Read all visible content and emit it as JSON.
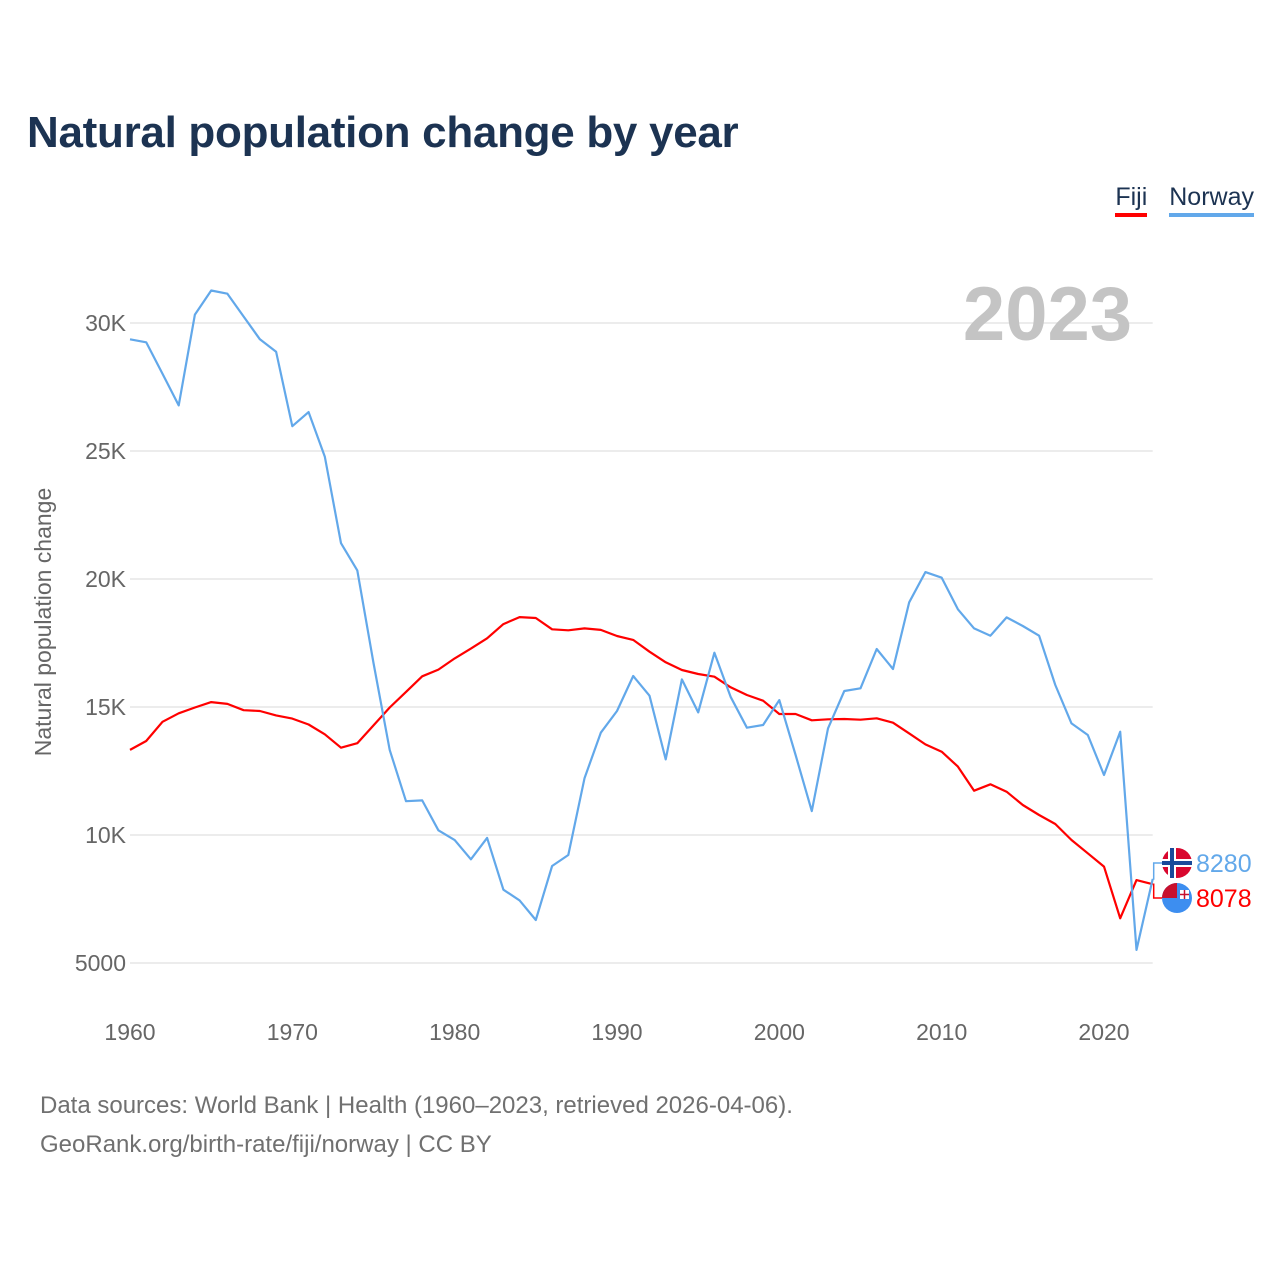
{
  "title": "Natural population change by year",
  "legend": [
    {
      "label": "Fiji",
      "color": "#ff0000"
    },
    {
      "label": "Norway",
      "color": "#62a8ea"
    }
  ],
  "footer": {
    "line1": "Data sources: World Bank | Health (1960–2023, retrieved 2026-04-06).",
    "line2": "GeoRank.org/birth-rate/fiji/norway | CC BY"
  },
  "chart_data": {
    "type": "line",
    "title": "Natural population change by year",
    "current_year_label": "2023",
    "xlabel": "",
    "ylabel": "Natural population change",
    "xlim": [
      1960,
      2023
    ],
    "ylim": [
      5000,
      30000
    ],
    "grid": true,
    "legend_position": "top-right",
    "x_ticks": [
      {
        "value": 1960,
        "label": "1960"
      },
      {
        "value": 1970,
        "label": "1970"
      },
      {
        "value": 1980,
        "label": "1980"
      },
      {
        "value": 1990,
        "label": "1990"
      },
      {
        "value": 2000,
        "label": "2000"
      },
      {
        "value": 2010,
        "label": "2010"
      },
      {
        "value": 2020,
        "label": "2020"
      }
    ],
    "y_ticks": [
      {
        "value": 5000,
        "label": "5000"
      },
      {
        "value": 10000,
        "label": "10K"
      },
      {
        "value": 15000,
        "label": "15K"
      },
      {
        "value": 20000,
        "label": "20K"
      },
      {
        "value": 25000,
        "label": "25K"
      },
      {
        "value": 30000,
        "label": "30K"
      }
    ],
    "x_start": 1960,
    "series": [
      {
        "name": "Fiji",
        "color": "#ff0000",
        "end_label": "8078",
        "flag": "fiji-flag",
        "values": [
          13325,
          13670,
          14420,
          14755,
          14980,
          15190,
          15120,
          14875,
          14845,
          14670,
          14545,
          14315,
          13935,
          13410,
          13585,
          14280,
          14980,
          15590,
          16200,
          16460,
          16900,
          17280,
          17685,
          18240,
          18510,
          18475,
          18035,
          17995,
          18070,
          18010,
          17775,
          17620,
          17160,
          16745,
          16445,
          16290,
          16185,
          15770,
          15470,
          15245,
          14725,
          14725,
          14480,
          14520,
          14530,
          14505,
          14560,
          14385,
          13970,
          13540,
          13255,
          12670,
          11730,
          11980,
          11690,
          11170,
          10780,
          10430,
          9805,
          9285,
          8765,
          6745,
          8240,
          8078
        ]
      },
      {
        "name": "Norway",
        "color": "#62a8ea",
        "end_label": "8280",
        "flag": "norway-flag",
        "values": [
          29365,
          29245,
          28020,
          26780,
          30330,
          31270,
          31145,
          30255,
          29365,
          28880,
          25970,
          26520,
          24780,
          21400,
          20335,
          16720,
          13325,
          11320,
          11350,
          10185,
          9800,
          9050,
          9885,
          7865,
          7445,
          6680,
          8790,
          9220,
          12215,
          13995,
          14845,
          16210,
          15440,
          12955,
          16080,
          14790,
          17120,
          15400,
          14190,
          14295,
          15270,
          13125,
          10935,
          14165,
          15625,
          15730,
          17265,
          16485,
          19090,
          20270,
          20050,
          18815,
          18070,
          17785,
          18500,
          18165,
          17785,
          15860,
          14360,
          13905,
          12345,
          14035,
          5510,
          8280
        ]
      }
    ]
  }
}
